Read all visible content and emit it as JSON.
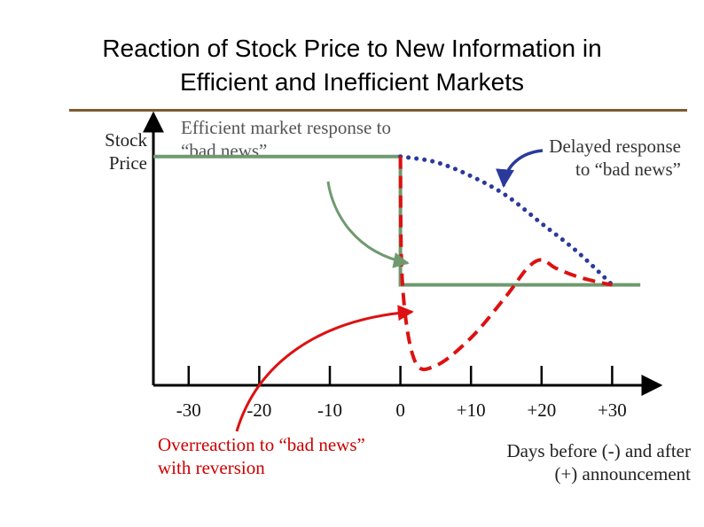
{
  "chart_data": {
    "type": "line",
    "title": "Reaction of Stock Price to New Information in Efficient and Inefficient Markets",
    "title_lines": [
      "Reaction of Stock Price to New Information in",
      "Efficient and Inefficient Markets"
    ],
    "ylabel_lines": [
      "Stock",
      "Price"
    ],
    "xlabel_lines": [
      "Days before (-) and after",
      "(+) announcement"
    ],
    "x_ticks": [
      -30,
      -20,
      -10,
      0,
      10,
      20,
      30
    ],
    "x_tick_labels": [
      "-30",
      "-20",
      "-10",
      "0",
      "+10",
      "+20",
      "+30"
    ],
    "xlim": [
      -35,
      40
    ],
    "ylim": [
      0,
      10
    ],
    "colors": {
      "efficient": "#6f9a6f",
      "delayed": "#2b3a9a",
      "overreaction": "#dd1111",
      "rule": "#7a5c2e",
      "axis": "#000000"
    },
    "series": [
      {
        "name": "Efficient market response",
        "style": "solid",
        "x": [
          -35,
          0,
          0,
          34
        ],
        "y": [
          8.2,
          8.2,
          3.6,
          3.6
        ]
      },
      {
        "name": "Delayed response",
        "style": "dotted",
        "x": [
          0,
          5,
          10,
          15,
          20,
          25,
          30
        ],
        "y": [
          8.2,
          8.0,
          7.5,
          6.8,
          5.8,
          4.8,
          3.6
        ]
      },
      {
        "name": "Overreaction with reversion",
        "style": "dashed",
        "x": [
          0,
          0.3,
          2,
          5,
          10,
          15,
          18,
          20,
          22,
          25,
          28,
          30
        ],
        "y": [
          8.2,
          3.6,
          0.9,
          0.7,
          1.7,
          3.2,
          4.2,
          4.5,
          4.2,
          3.9,
          3.7,
          3.6
        ]
      }
    ],
    "annotations": {
      "efficient_lines": [
        "Efficient market response to",
        "“bad news”"
      ],
      "delayed_lines": [
        "Delayed response",
        "to “bad news”"
      ],
      "overreaction_lines": [
        "Overreaction to “bad news”",
        "with reversion"
      ]
    }
  }
}
